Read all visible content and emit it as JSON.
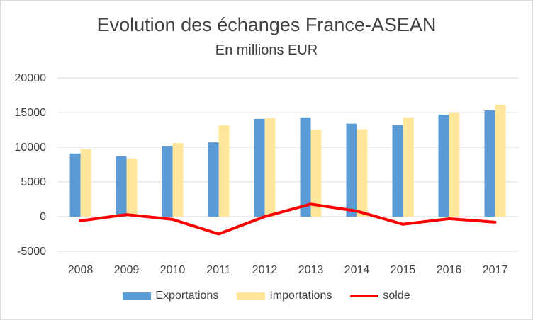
{
  "chart_data": {
    "type": "bar",
    "title": "Evolution des échanges France-ASEAN",
    "subtitle": "En millions EUR",
    "xlabel": "",
    "ylabel": "",
    "categories": [
      "2008",
      "2009",
      "2010",
      "2011",
      "2012",
      "2013",
      "2014",
      "2015",
      "2016",
      "2017"
    ],
    "ylim": [
      -5000,
      20000
    ],
    "yticks": [
      20000,
      15000,
      10000,
      5000,
      0,
      -5000
    ],
    "grid": true,
    "legend_position": "bottom",
    "series": [
      {
        "name": "Exportations",
        "kind": "bar",
        "color": "#5b9bd5",
        "values": [
          9100,
          8700,
          10200,
          10700,
          14100,
          14300,
          13400,
          13200,
          14700,
          15300
        ]
      },
      {
        "name": "Importations",
        "kind": "bar",
        "color": "#ffe699",
        "values": [
          9700,
          8400,
          10600,
          13200,
          14200,
          12500,
          12600,
          14300,
          15000,
          16100
        ]
      },
      {
        "name": "solde",
        "kind": "line",
        "color": "#ff0000",
        "values": [
          -600,
          300,
          -400,
          -2500,
          0,
          1800,
          800,
          -1100,
          -300,
          -800
        ]
      }
    ]
  }
}
